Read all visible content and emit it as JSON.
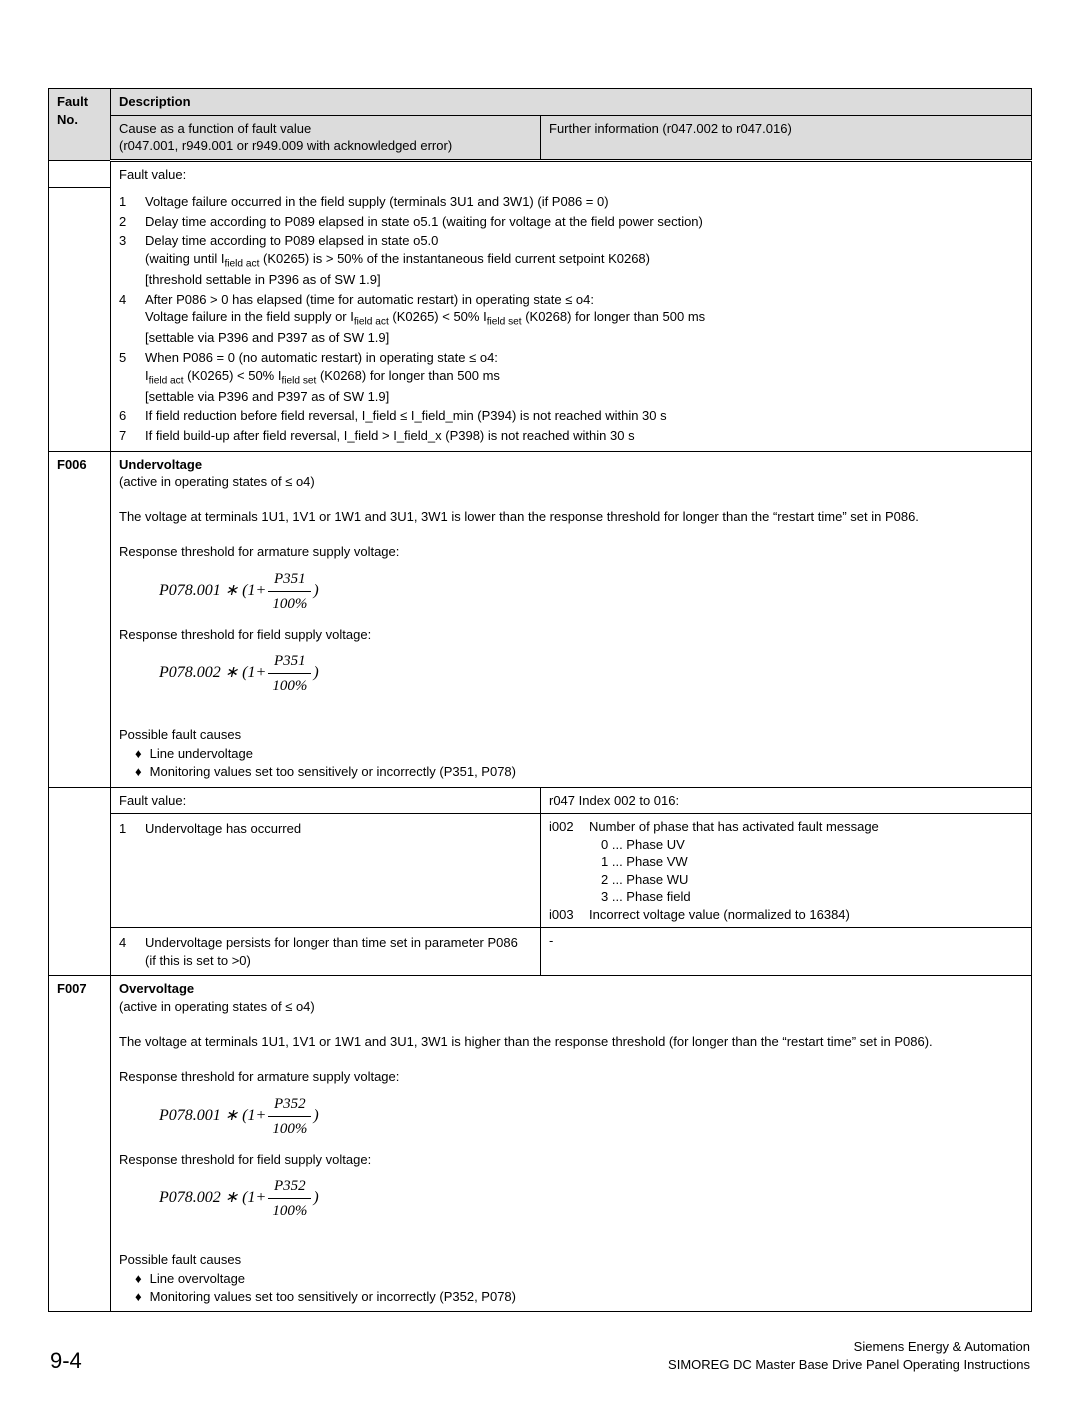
{
  "header": {
    "col1_line1": "Fault",
    "col1_line2": "No.",
    "col2_title": "Description",
    "sub_left_line1": "Cause as a function of fault value",
    "sub_left_line2": "(r047.001, r949.001 or r949.009 with acknowledged error)",
    "sub_right": "Further information (r047.002 to r047.016)"
  },
  "topFaultValue": {
    "label": "Fault value:",
    "items": [
      {
        "n": "1",
        "text": "Voltage failure occurred in the field supply (terminals 3U1 and 3W1) (if P086 = 0)"
      },
      {
        "n": "2",
        "text": "Delay time according to P089 elapsed in state o5.1 (waiting for voltage at the field power section)"
      },
      {
        "n": "3",
        "text": "Delay time according to P089 elapsed in state o5.0\n(waiting until I<sub>field act</sub> (K0265) is > 50% of the instantaneous field current setpoint K0268)\n[threshold settable in P396 as of SW 1.9]"
      },
      {
        "n": "4",
        "text": "After P086 > 0 has elapsed (time for automatic restart) in operating state ≤ o4:\nVoltage failure in the field supply or I<sub>field act</sub> (K0265) < 50% I<sub>field set</sub> (K0268) for longer than 500 ms\n[settable via P396 and P397 as of SW 1.9]"
      },
      {
        "n": "5",
        "text": "When P086 = 0 (no automatic restart) in operating state ≤ o4:\nI<sub>field act</sub> (K0265) < 50% I<sub>field set</sub> (K0268) for longer than 500 ms\n[settable via P396 and P397 as of SW 1.9]"
      },
      {
        "n": "6",
        "text": "If field reduction before field reversal, I_field ≤ I_field_min (P394) is not reached within 30 s"
      },
      {
        "n": "7",
        "text": "If field build-up after field reversal, I_field > I_field_x (P398) is not reached within 30 s"
      }
    ]
  },
  "f006": {
    "no": "F006",
    "title": "Undervoltage",
    "active": "(active in operating states of ≤ o4)",
    "desc": "The voltage at terminals 1U1, 1V1 or 1W1 and 3U1, 3W1 is lower than the response threshold for longer than the “restart time” set in P086.",
    "arm_label": "Response threshold for armature supply voltage:",
    "arm_formula": {
      "pre": "P078.001 ∗ (1+",
      "num": "P351",
      "den": "100%",
      "post": ")"
    },
    "field_label": "Response threshold for field supply voltage:",
    "field_formula": {
      "pre": "P078.002 ∗ (1+",
      "num": "P351",
      "den": "100%",
      "post": ")"
    },
    "causes_label": "Possible fault causes",
    "causes": [
      "Line undervoltage",
      "Monitoring values set too sensitively or incorrectly (P351, P078)"
    ],
    "fv_left_label": "Fault value:",
    "fv_right_label": "r047 Index 002 to 016:",
    "row1": {
      "n": "1",
      "text": "Undervoltage has occurred",
      "info": {
        "i002_label": "i002",
        "i002_text": "Number of phase that has activated fault message",
        "phases": [
          "0 ... Phase UV",
          "1 ... Phase VW",
          "2 ... Phase WU",
          "3 ... Phase field"
        ],
        "i003_label": "i003",
        "i003_text": "Incorrect voltage value (normalized to 16384)"
      }
    },
    "row4": {
      "n": "4",
      "text": "Undervoltage persists for longer than time set in parameter P086 (if this is set to >0)",
      "right": "-"
    }
  },
  "f007": {
    "no": "F007",
    "title": "Overvoltage",
    "active": "(active in operating states of ≤ o4)",
    "desc": "The voltage at terminals 1U1, 1V1 or 1W1 and 3U1, 3W1 is higher than the response threshold (for longer than the “restart time” set in P086).",
    "arm_label": "Response threshold for armature supply voltage:",
    "arm_formula": {
      "pre": "P078.001 ∗ (1+",
      "num": "P352",
      "den": "100%",
      "post": ")"
    },
    "field_label": "Response threshold for field supply voltage:",
    "field_formula": {
      "pre": "P078.002 ∗ (1+",
      "num": "P352",
      "den": "100%",
      "post": ")"
    },
    "causes_label": "Possible fault causes",
    "causes": [
      "Line overvoltage",
      "Monitoring values set too sensitively or incorrectly (P352, P078)"
    ]
  },
  "footer": {
    "page": "9-4",
    "right1": "Siemens Energy & Automation",
    "right2": "SIMOREG DC Master Base Drive Panel   Operating Instructions"
  }
}
